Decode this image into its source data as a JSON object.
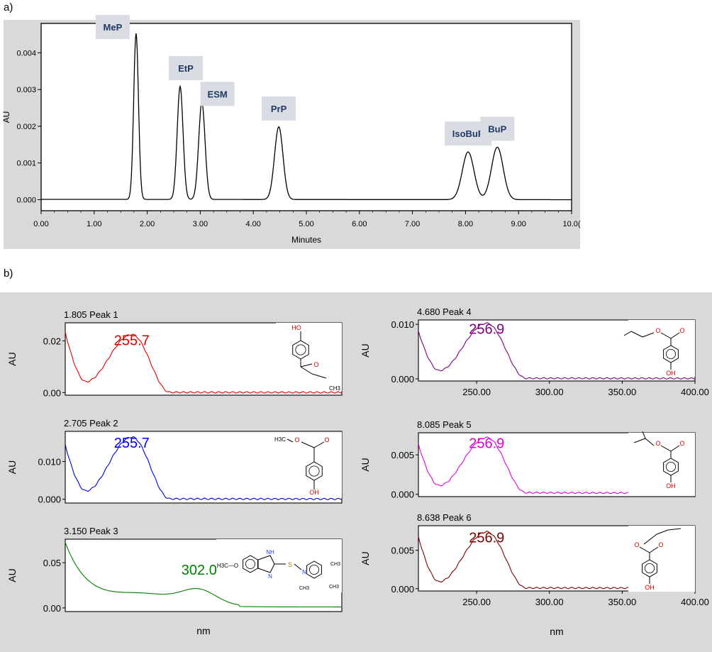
{
  "panel_a_label": "a)",
  "panel_b_label": "b)",
  "chart_data": [
    {
      "type": "line",
      "panel": "a",
      "xlabel": "Minutes",
      "ylabel": "AU",
      "xlim": [
        0,
        10
      ],
      "ylim": [
        -0.0003,
        0.0048
      ],
      "x_ticks": [
        "0.00",
        "1.00",
        "2.00",
        "3.00",
        "4.00",
        "5.00",
        "6.00",
        "7.00",
        "8.00",
        "9.00",
        "10.0("
      ],
      "x_tick_values": [
        0,
        1,
        2,
        3,
        4,
        5,
        6,
        7,
        8,
        9,
        10
      ],
      "y_ticks": [
        "0.000",
        "0.001",
        "0.002",
        "0.003",
        "0.004"
      ],
      "y_tick_values": [
        0,
        0.001,
        0.002,
        0.003,
        0.004
      ],
      "baseline": 1e-05,
      "peaks": [
        {
          "label": "MeP",
          "rt": 1.79,
          "height": 0.00452,
          "sigma": 0.045
        },
        {
          "label": "EtP",
          "rt": 2.62,
          "height": 0.00308,
          "sigma": 0.055
        },
        {
          "label": "ESM",
          "rt": 3.03,
          "height": 0.00265,
          "sigma": 0.06
        },
        {
          "label": "PrP",
          "rt": 4.48,
          "height": 0.00198,
          "sigma": 0.08
        },
        {
          "label": "IsoBuP",
          "rt": 8.05,
          "height": 0.0013,
          "sigma": 0.11
        },
        {
          "label": "BuP",
          "rt": 8.6,
          "height": 0.00143,
          "sigma": 0.11
        }
      ]
    },
    {
      "type": "line",
      "panel": "b",
      "title": "1.805 Peak 1",
      "max_label": "255.7",
      "max_x": 255.7,
      "color": "#e00000",
      "ylabel": "AU",
      "xlim": [
        210,
        400
      ],
      "ylim": [
        -0.001,
        0.027
      ],
      "y_ticks": [
        "0.00",
        "0.02"
      ],
      "y_tick_values": [
        0,
        0.02
      ],
      "min_x": 224,
      "min_y": 0.0042,
      "peak_y": 0.0225,
      "start_y": 0.0235,
      "end_x": 282,
      "tail_y": 0.0001,
      "structure": {
        "substituents": [
          "HO",
          "O",
          "CH3"
        ]
      }
    },
    {
      "type": "line",
      "panel": "b",
      "title": "2.705 Peak 2",
      "max_label": "255.7",
      "max_x": 255.7,
      "color": "#0000e0",
      "ylabel": "AU",
      "xlim": [
        210,
        400
      ],
      "ylim": [
        -0.001,
        0.018
      ],
      "y_ticks": [
        "0.000",
        "0.010"
      ],
      "y_tick_values": [
        0,
        0.01
      ],
      "min_x": 224,
      "min_y": 0.0022,
      "peak_y": 0.0165,
      "start_y": 0.0145,
      "end_x": 282,
      "tail_y": 0.0001,
      "structure": {
        "substituents": [
          "H3C",
          "O",
          "OH"
        ]
      }
    },
    {
      "type": "line",
      "panel": "b",
      "title": "3.150 Peak 3",
      "max_label": "302.0",
      "max_x": 302,
      "color": "#008000",
      "ylabel": "AU",
      "xlabel": "nm",
      "xlim": [
        210,
        400
      ],
      "ylim": [
        -0.004,
        0.076
      ],
      "y_ticks": [
        "0.00",
        "0.05"
      ],
      "y_tick_values": [
        0,
        0.05
      ],
      "structure": {
        "substituents": [
          "H3C",
          "O",
          "N",
          "H",
          "S",
          "CH3",
          "CH3",
          "CH3"
        ]
      }
    },
    {
      "type": "line",
      "panel": "b",
      "title": "4.680 Peak 4",
      "max_label": "256.9",
      "max_x": 256.9,
      "color": "#800080",
      "ylabel": "AU",
      "xlim": [
        210,
        400
      ],
      "ylim": [
        -0.0004,
        0.0108
      ],
      "y_ticks": [
        "0.000",
        "0.010"
      ],
      "y_tick_values": [
        0,
        0.01
      ],
      "x_ticks": [
        "250.00",
        "300.00",
        "350.00",
        "400.00"
      ],
      "x_tick_values": [
        250,
        300,
        350,
        400
      ],
      "min_x": 224,
      "min_y": 0.0015,
      "peak_y": 0.0102,
      "start_y": 0.0088,
      "end_x": 284,
      "tail_y": 0.0001,
      "structure": {
        "substituents": [
          "O",
          "O",
          "OH"
        ]
      }
    },
    {
      "type": "line",
      "panel": "b",
      "title": "8.085 Peak 5",
      "max_label": "256.9",
      "max_x": 256.9,
      "color": "#e000e0",
      "ylabel": "AU",
      "xlim": [
        210,
        400
      ],
      "ylim": [
        -0.0003,
        0.0078
      ],
      "y_ticks": [
        "0.000",
        "0.005"
      ],
      "y_tick_values": [
        0,
        0.005
      ],
      "min_x": 224,
      "min_y": 0.0011,
      "peak_y": 0.0072,
      "start_y": 0.0064,
      "end_x": 284,
      "tail_y": 0.0002,
      "structure": {
        "substituents": [
          "O",
          "O",
          "OH"
        ]
      }
    },
    {
      "type": "line",
      "panel": "b",
      "title": "8.638 Peak 6",
      "max_label": "256.9",
      "max_x": 256.9,
      "color": "#800000",
      "ylabel": "AU",
      "xlabel": "nm",
      "xlim": [
        210,
        400
      ],
      "ylim": [
        -0.0003,
        0.0082
      ],
      "y_ticks": [
        "0.000",
        "0.005"
      ],
      "y_tick_values": [
        0,
        0.005
      ],
      "x_ticks": [
        "250.00",
        "300.00",
        "350.00",
        "400.00"
      ],
      "x_tick_values": [
        250,
        300,
        350,
        400
      ],
      "min_x": 224,
      "min_y": 0.0009,
      "peak_y": 0.0074,
      "start_y": 0.0068,
      "end_x": 284,
      "tail_y": 0.0001,
      "structure": {
        "substituents": [
          "O",
          "O",
          "OH"
        ]
      }
    }
  ]
}
